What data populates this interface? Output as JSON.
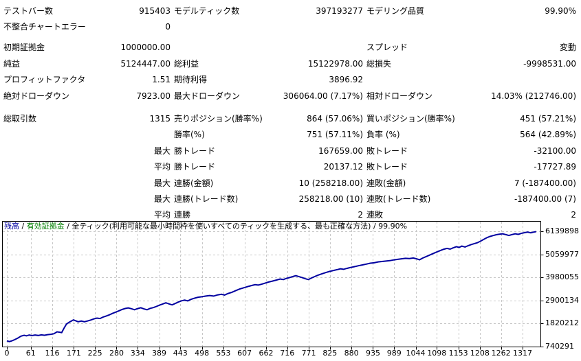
{
  "report": {
    "rows": [
      [
        "テストバー数",
        "915403",
        "モデルティック数",
        "397193277",
        "モデリング品質",
        "99.90%"
      ],
      [
        "不整合チャートエラー",
        "0",
        "",
        "",
        "",
        ""
      ],
      [
        "初期証拠金",
        "1000000.00",
        "",
        "",
        "スプレッド",
        "変動"
      ],
      [
        "純益",
        "5124447.00",
        "総利益",
        "15122978.00",
        "総損失",
        "-9998531.00"
      ],
      [
        "プロフィットファクタ",
        "1.51",
        "期待利得",
        "3896.92",
        "",
        ""
      ],
      [
        "絶対ドローダウン",
        "7923.00",
        "最大ドローダウン",
        "306064.00 (7.17%)",
        "相対ドローダウン",
        "14.03% (212746.00)"
      ],
      [
        "総取引数",
        "1315",
        "売りポジション(勝率%)",
        "864 (57.06%)",
        "買いポジション(勝率%)",
        "451 (57.21%)"
      ],
      [
        "",
        "",
        "勝率(%)",
        "751 (57.11%)",
        "負率 (%)",
        "564 (42.89%)"
      ],
      [
        "",
        "最大",
        "勝トレード",
        "167659.00",
        "敗トレード",
        "-32100.00"
      ],
      [
        "",
        "平均",
        "勝トレード",
        "20137.12",
        "敗トレード",
        "-17727.89"
      ],
      [
        "",
        "最大",
        "連勝(金額)",
        "10 (258218.00)",
        "連敗(金額)",
        "7 (-187400.00)"
      ],
      [
        "",
        "最大",
        "連勝(トレード数)",
        "258218.00 (10)",
        "連敗(トレード数)",
        "-187400.00 (7)"
      ],
      [
        "",
        "平均",
        "連勝",
        "2",
        "連敗",
        "2"
      ]
    ]
  },
  "chart": {
    "legend": {
      "balance": "残高",
      "sep": " / ",
      "equity": "有効証拠金",
      "model": "全ティック(利用可能な最小時間枠を使いすべてのティックを生成する、最も正確な方法)",
      "quality": "99.90%"
    },
    "colors": {
      "line": "#0000A0",
      "equity": "#008000",
      "grid": "#C8C8C8",
      "border": "#000000"
    }
  },
  "chart_data": {
    "type": "line",
    "title": "残高 / 有効証拠金 / 全ティック(利用可能な最小時間枠を使いすべてのティックを生成する、最も正確な方法) / 99.90%",
    "grid": true,
    "legend_position": "top-left-inside",
    "x_ticks": [
      0,
      61,
      116,
      171,
      225,
      280,
      334,
      389,
      443,
      498,
      553,
      607,
      662,
      716,
      771,
      825,
      880,
      935,
      989,
      1044,
      1098,
      1153,
      1208,
      1262,
      1317
    ],
    "y_ticks": [
      6139898,
      5059977,
      3980055,
      2900134,
      1820212,
      740291
    ],
    "xlim": [
      0,
      1352
    ],
    "ylim": [
      740291,
      6139898
    ],
    "series": [
      {
        "name": "残高",
        "color": "#0000A0",
        "points": [
          [
            0,
            1010000
          ],
          [
            6,
            975000
          ],
          [
            12,
            1005000
          ],
          [
            20,
            1065000
          ],
          [
            28,
            1140000
          ],
          [
            36,
            1230000
          ],
          [
            44,
            1270000
          ],
          [
            50,
            1245000
          ],
          [
            57,
            1285000
          ],
          [
            64,
            1255000
          ],
          [
            72,
            1285000
          ],
          [
            80,
            1260000
          ],
          [
            88,
            1290000
          ],
          [
            96,
            1270000
          ],
          [
            104,
            1300000
          ],
          [
            112,
            1315000
          ],
          [
            120,
            1340000
          ],
          [
            128,
            1430000
          ],
          [
            134,
            1415000
          ],
          [
            140,
            1395000
          ],
          [
            146,
            1600000
          ],
          [
            152,
            1790000
          ],
          [
            158,
            1870000
          ],
          [
            164,
            1930000
          ],
          [
            170,
            1990000
          ],
          [
            176,
            1950000
          ],
          [
            182,
            1905000
          ],
          [
            190,
            1935000
          ],
          [
            198,
            1905000
          ],
          [
            206,
            1940000
          ],
          [
            214,
            1985000
          ],
          [
            222,
            2035000
          ],
          [
            230,
            2075000
          ],
          [
            238,
            2055000
          ],
          [
            246,
            2125000
          ],
          [
            254,
            2175000
          ],
          [
            262,
            2230000
          ],
          [
            270,
            2295000
          ],
          [
            278,
            2355000
          ],
          [
            286,
            2415000
          ],
          [
            294,
            2475000
          ],
          [
            302,
            2525000
          ],
          [
            310,
            2550000
          ],
          [
            318,
            2515000
          ],
          [
            326,
            2465000
          ],
          [
            334,
            2520000
          ],
          [
            342,
            2560000
          ],
          [
            350,
            2505000
          ],
          [
            358,
            2465000
          ],
          [
            366,
            2530000
          ],
          [
            374,
            2565000
          ],
          [
            382,
            2620000
          ],
          [
            390,
            2680000
          ],
          [
            398,
            2735000
          ],
          [
            406,
            2790000
          ],
          [
            414,
            2740000
          ],
          [
            422,
            2695000
          ],
          [
            430,
            2760000
          ],
          [
            438,
            2825000
          ],
          [
            446,
            2885000
          ],
          [
            454,
            2915000
          ],
          [
            462,
            2880000
          ],
          [
            470,
            2950000
          ],
          [
            478,
            3000000
          ],
          [
            488,
            3050000
          ],
          [
            498,
            3075000
          ],
          [
            508,
            3105000
          ],
          [
            518,
            3130000
          ],
          [
            528,
            3105000
          ],
          [
            538,
            3160000
          ],
          [
            548,
            3190000
          ],
          [
            556,
            3155000
          ],
          [
            564,
            3220000
          ],
          [
            574,
            3280000
          ],
          [
            584,
            3355000
          ],
          [
            594,
            3435000
          ],
          [
            602,
            3480000
          ],
          [
            610,
            3525000
          ],
          [
            618,
            3565000
          ],
          [
            626,
            3605000
          ],
          [
            634,
            3640000
          ],
          [
            642,
            3620000
          ],
          [
            650,
            3660000
          ],
          [
            658,
            3705000
          ],
          [
            668,
            3760000
          ],
          [
            678,
            3805000
          ],
          [
            688,
            3855000
          ],
          [
            698,
            3905000
          ],
          [
            706,
            3880000
          ],
          [
            714,
            3935000
          ],
          [
            722,
            3975000
          ],
          [
            730,
            4020000
          ],
          [
            738,
            4060000
          ],
          [
            746,
            4015000
          ],
          [
            754,
            3975000
          ],
          [
            762,
            3920000
          ],
          [
            770,
            3880000
          ],
          [
            778,
            3955000
          ],
          [
            786,
            4020000
          ],
          [
            794,
            4080000
          ],
          [
            804,
            4145000
          ],
          [
            814,
            4205000
          ],
          [
            824,
            4260000
          ],
          [
            834,
            4305000
          ],
          [
            844,
            4345000
          ],
          [
            852,
            4385000
          ],
          [
            860,
            4360000
          ],
          [
            868,
            4400000
          ],
          [
            878,
            4445000
          ],
          [
            888,
            4485000
          ],
          [
            898,
            4525000
          ],
          [
            908,
            4565000
          ],
          [
            918,
            4605000
          ],
          [
            928,
            4645000
          ],
          [
            938,
            4665000
          ],
          [
            948,
            4705000
          ],
          [
            958,
            4725000
          ],
          [
            968,
            4745000
          ],
          [
            978,
            4765000
          ],
          [
            988,
            4800000
          ],
          [
            998,
            4825000
          ],
          [
            1008,
            4850000
          ],
          [
            1018,
            4875000
          ],
          [
            1028,
            4860000
          ],
          [
            1038,
            4890000
          ],
          [
            1046,
            4850000
          ],
          [
            1054,
            4805000
          ],
          [
            1062,
            4885000
          ],
          [
            1072,
            4965000
          ],
          [
            1082,
            5045000
          ],
          [
            1092,
            5125000
          ],
          [
            1100,
            5185000
          ],
          [
            1108,
            5245000
          ],
          [
            1116,
            5300000
          ],
          [
            1124,
            5340000
          ],
          [
            1132,
            5305000
          ],
          [
            1140,
            5365000
          ],
          [
            1148,
            5420000
          ],
          [
            1155,
            5385000
          ],
          [
            1162,
            5445000
          ],
          [
            1170,
            5405000
          ],
          [
            1178,
            5465000
          ],
          [
            1186,
            5520000
          ],
          [
            1194,
            5565000
          ],
          [
            1202,
            5605000
          ],
          [
            1210,
            5685000
          ],
          [
            1218,
            5765000
          ],
          [
            1226,
            5840000
          ],
          [
            1234,
            5900000
          ],
          [
            1242,
            5940000
          ],
          [
            1250,
            5980000
          ],
          [
            1258,
            6005000
          ],
          [
            1266,
            6025000
          ],
          [
            1274,
            5985000
          ],
          [
            1282,
            5945000
          ],
          [
            1290,
            5985000
          ],
          [
            1298,
            6025000
          ],
          [
            1306,
            5995000
          ],
          [
            1314,
            6045000
          ],
          [
            1322,
            6075000
          ],
          [
            1330,
            6100000
          ],
          [
            1338,
            6070000
          ],
          [
            1345,
            6100000
          ],
          [
            1352,
            6124447
          ]
        ]
      }
    ]
  }
}
